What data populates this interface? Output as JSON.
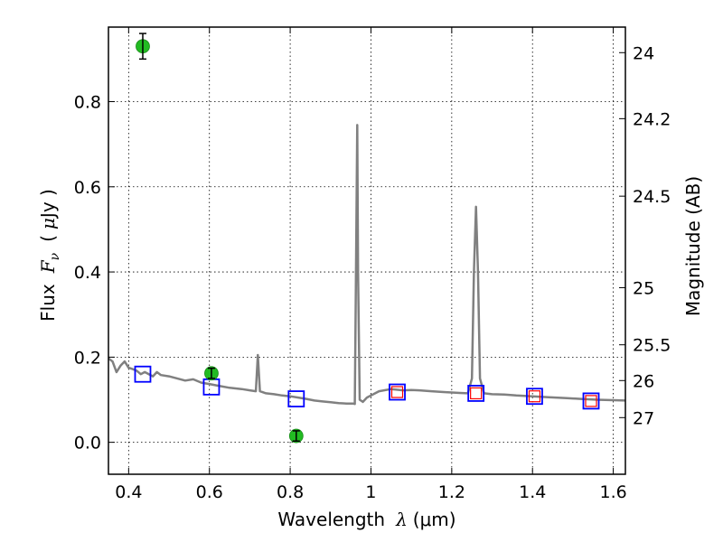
{
  "chart_data": {
    "type": "line",
    "xlabel": {
      "prefix": "Wavelength",
      "symbol": "λ",
      "unit": "(μm)"
    },
    "ylabel": {
      "prefix": "Flux",
      "symbol": "F",
      "subscript": "ν",
      "unit_open": "(",
      "unit_mu": "μ",
      "unit_rest": "Jy )"
    },
    "y2label": "Magnitude (AB)",
    "xlim": [
      0.35,
      1.63
    ],
    "ylim": [
      -0.075,
      0.975
    ],
    "grid": true,
    "x_ticks": [
      {
        "value": 0.4,
        "label": "0.4"
      },
      {
        "value": 0.6,
        "label": "0.6"
      },
      {
        "value": 0.8,
        "label": "0.8"
      },
      {
        "value": 1.0,
        "label": "1"
      },
      {
        "value": 1.2,
        "label": "1.2"
      },
      {
        "value": 1.4,
        "label": "1.4"
      },
      {
        "value": 1.6,
        "label": "1.6"
      }
    ],
    "y_ticks": [
      {
        "value": 0.0,
        "label": "0.0"
      },
      {
        "value": 0.2,
        "label": "0.2"
      },
      {
        "value": 0.4,
        "label": "0.4"
      },
      {
        "value": 0.6,
        "label": "0.6"
      },
      {
        "value": 0.8,
        "label": "0.8"
      }
    ],
    "y2_ticks": [
      {
        "flux": 0.915,
        "label": "24"
      },
      {
        "flux": 0.76,
        "label": "24.2"
      },
      {
        "flux": 0.578,
        "label": "24.5"
      },
      {
        "flux": 0.363,
        "label": "25"
      },
      {
        "flux": 0.229,
        "label": "25.5"
      },
      {
        "flux": 0.145,
        "label": "26"
      },
      {
        "flux": 0.058,
        "label": "27"
      }
    ],
    "series": [
      {
        "kind": "line",
        "color": "#808080",
        "x": [
          0.35,
          0.36,
          0.37,
          0.38,
          0.39,
          0.4,
          0.41,
          0.42,
          0.43,
          0.44,
          0.45,
          0.46,
          0.47,
          0.48,
          0.5,
          0.52,
          0.54,
          0.56,
          0.58,
          0.6,
          0.62,
          0.65,
          0.68,
          0.7,
          0.715,
          0.72,
          0.725,
          0.74,
          0.76,
          0.78,
          0.8,
          0.82,
          0.84,
          0.86,
          0.88,
          0.9,
          0.92,
          0.94,
          0.955,
          0.96,
          0.963,
          0.966,
          0.968,
          0.972,
          0.98,
          0.99,
          1.0,
          1.02,
          1.05,
          1.08,
          1.1,
          1.12,
          1.15,
          1.18,
          1.2,
          1.22,
          1.24,
          1.25,
          1.255,
          1.26,
          1.265,
          1.27,
          1.28,
          1.3,
          1.33,
          1.36,
          1.4,
          1.44,
          1.48,
          1.52,
          1.56,
          1.6,
          1.63
        ],
        "y": [
          0.197,
          0.19,
          0.165,
          0.18,
          0.19,
          0.175,
          0.172,
          0.168,
          0.16,
          0.165,
          0.16,
          0.155,
          0.165,
          0.158,
          0.155,
          0.15,
          0.145,
          0.148,
          0.14,
          0.137,
          0.133,
          0.128,
          0.125,
          0.122,
          0.12,
          0.205,
          0.12,
          0.115,
          0.113,
          0.11,
          0.108,
          0.105,
          0.102,
          0.098,
          0.096,
          0.094,
          0.092,
          0.091,
          0.091,
          0.09,
          0.4,
          0.745,
          0.4,
          0.1,
          0.095,
          0.105,
          0.11,
          0.12,
          0.125,
          0.122,
          0.123,
          0.122,
          0.12,
          0.118,
          0.117,
          0.116,
          0.115,
          0.15,
          0.4,
          0.553,
          0.4,
          0.15,
          0.115,
          0.113,
          0.112,
          0.11,
          0.108,
          0.106,
          0.104,
          0.102,
          0.1,
          0.099,
          0.098
        ]
      },
      {
        "kind": "markers",
        "marker": "square",
        "color": "#0000ff",
        "x": [
          0.435,
          0.605,
          0.815,
          1.065,
          1.26,
          1.405,
          1.545
        ],
        "y": [
          0.16,
          0.13,
          0.102,
          0.118,
          0.115,
          0.108,
          0.097
        ]
      },
      {
        "kind": "markers",
        "marker": "square-small",
        "color": "#ff0000",
        "x": [
          1.065,
          1.26,
          1.405,
          1.545
        ],
        "y": [
          0.118,
          0.115,
          0.108,
          0.097
        ]
      },
      {
        "kind": "errorbar",
        "marker": "circle",
        "color": "#22bb22",
        "x": [
          0.435,
          0.605,
          0.815
        ],
        "y": [
          0.93,
          0.162,
          0.015
        ],
        "yerr": [
          0.03,
          0.012,
          0.012
        ]
      }
    ]
  }
}
